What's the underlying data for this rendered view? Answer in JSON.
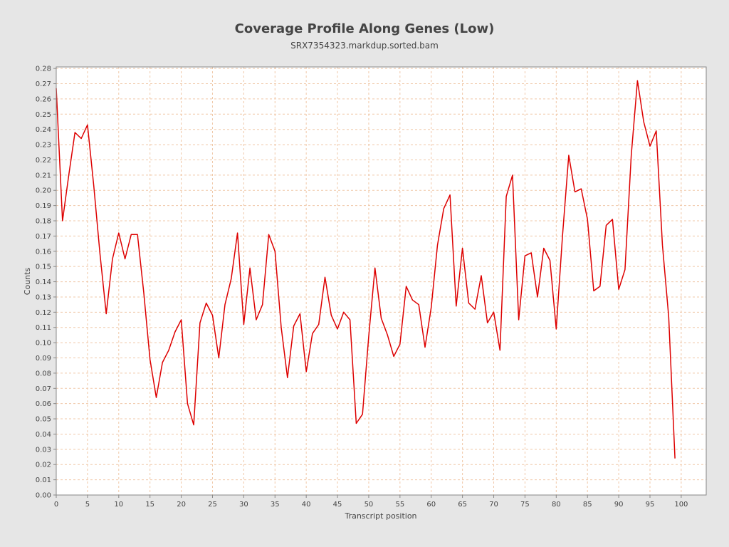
{
  "chart_data": {
    "type": "line",
    "title": "Coverage Profile Along Genes (Low)",
    "subtitle": "SRX7354323.markdup.sorted.bam",
    "xlabel": "Transcript position",
    "ylabel": "Counts",
    "xlim": [
      0,
      104
    ],
    "ylim": [
      0,
      0.281
    ],
    "xticks": [
      0,
      5,
      10,
      15,
      20,
      25,
      30,
      35,
      40,
      45,
      50,
      55,
      60,
      65,
      70,
      75,
      80,
      85,
      90,
      95,
      100
    ],
    "yticks": [
      0.0,
      0.01,
      0.02,
      0.03,
      0.04,
      0.05,
      0.06,
      0.07,
      0.08,
      0.09,
      0.1,
      0.11,
      0.12,
      0.13,
      0.14,
      0.15,
      0.16,
      0.17,
      0.18,
      0.19,
      0.2,
      0.21,
      0.22,
      0.23,
      0.24,
      0.25,
      0.26,
      0.27,
      0.28
    ],
    "grid": true,
    "legend": "none",
    "series": [
      {
        "color": "#dd0000",
        "x": [
          0,
          1,
          2,
          3,
          4,
          5,
          6,
          7,
          8,
          9,
          10,
          11,
          12,
          13,
          14,
          15,
          16,
          17,
          18,
          19,
          20,
          21,
          22,
          23,
          24,
          25,
          26,
          27,
          28,
          29,
          30,
          31,
          32,
          33,
          34,
          35,
          36,
          37,
          38,
          39,
          40,
          41,
          42,
          43,
          44,
          45,
          46,
          47,
          48,
          49,
          50,
          51,
          52,
          53,
          54,
          55,
          56,
          57,
          58,
          59,
          60,
          61,
          62,
          63,
          64,
          65,
          66,
          67,
          68,
          69,
          70,
          71,
          72,
          73,
          74,
          75,
          76,
          77,
          78,
          79,
          80,
          81,
          82,
          83,
          84,
          85,
          86,
          87,
          88,
          89,
          90,
          91,
          92,
          93,
          94,
          95,
          96,
          97,
          98,
          99
        ],
        "values": [
          0.267,
          0.18,
          0.21,
          0.238,
          0.234,
          0.243,
          0.203,
          0.158,
          0.119,
          0.155,
          0.172,
          0.155,
          0.171,
          0.171,
          0.133,
          0.089,
          0.064,
          0.087,
          0.095,
          0.107,
          0.115,
          0.06,
          0.046,
          0.113,
          0.126,
          0.118,
          0.09,
          0.125,
          0.142,
          0.172,
          0.112,
          0.149,
          0.115,
          0.125,
          0.171,
          0.16,
          0.11,
          0.077,
          0.111,
          0.119,
          0.081,
          0.106,
          0.112,
          0.143,
          0.118,
          0.109,
          0.12,
          0.115,
          0.047,
          0.053,
          0.104,
          0.149,
          0.116,
          0.105,
          0.091,
          0.099,
          0.137,
          0.128,
          0.125,
          0.097,
          0.123,
          0.164,
          0.188,
          0.197,
          0.124,
          0.162,
          0.126,
          0.122,
          0.144,
          0.113,
          0.12,
          0.095,
          0.196,
          0.21,
          0.115,
          0.157,
          0.159,
          0.13,
          0.162,
          0.154,
          0.109,
          0.17,
          0.223,
          0.199,
          0.201,
          0.181,
          0.134,
          0.137,
          0.177,
          0.181,
          0.135,
          0.148,
          0.223,
          0.272,
          0.245,
          0.229,
          0.239,
          0.164,
          0.117,
          0.024
        ]
      }
    ]
  }
}
